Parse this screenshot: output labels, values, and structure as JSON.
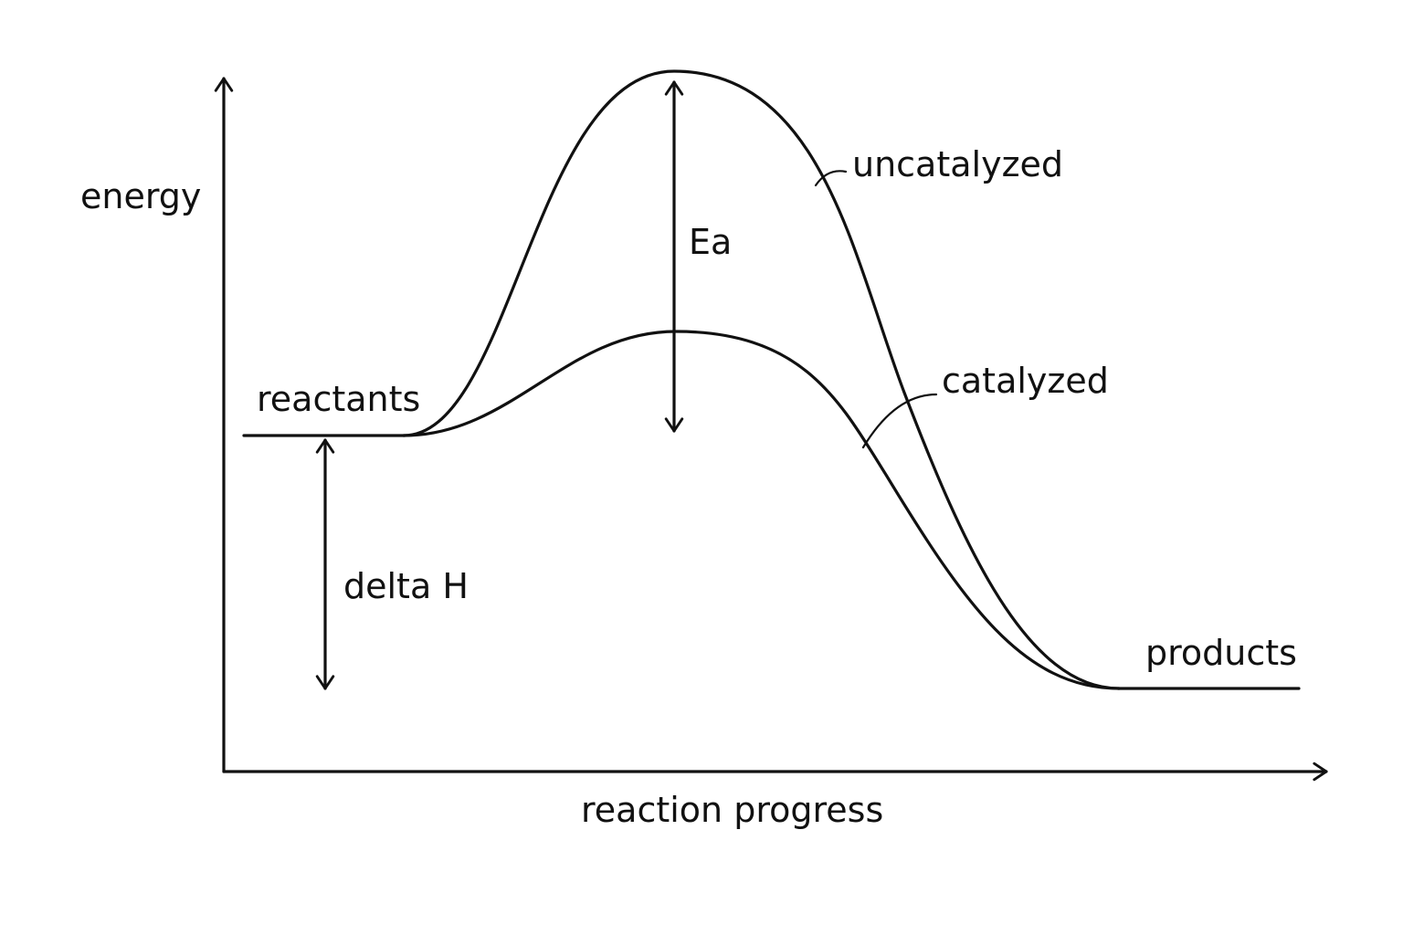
{
  "diagram": {
    "axis_y_label": "energy",
    "axis_x_label": "reaction progress",
    "reactants_label": "reactants",
    "products_label": "products",
    "uncatalyzed_label": "uncatalyzed",
    "catalyzed_label": "catalyzed",
    "activation_energy_label": "Ea",
    "enthalpy_change_label": "delta H",
    "stroke_color": "#111111",
    "background_color": "#ffffff"
  }
}
